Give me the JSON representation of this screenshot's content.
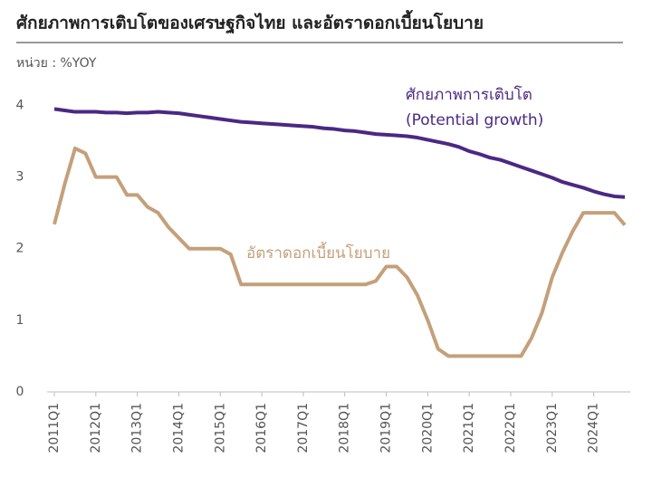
{
  "chart_data": {
    "type": "line",
    "title": "ศักยภาพการเติบโตของเศรษฐกิจไทย  และอัตราดอกเบี้ยนโยบาย",
    "subtitle": "หน่วย : %YOY",
    "categories": [
      "2011Q1",
      null,
      null,
      null,
      "2012Q1",
      null,
      null,
      null,
      "2013Q1",
      null,
      null,
      null,
      "2014Q1",
      null,
      null,
      null,
      "2015Q1",
      null,
      null,
      null,
      "2016Q1",
      null,
      null,
      null,
      "2017Q1",
      null,
      null,
      null,
      "2018Q1",
      null,
      null,
      null,
      "2019Q1",
      null,
      null,
      null,
      "2020Q1",
      null,
      null,
      null,
      "2021Q1",
      null,
      null,
      null,
      "2022Q1",
      null,
      null,
      null,
      "2023Q1",
      null,
      null,
      null,
      "2024Q1",
      null,
      null,
      null
    ],
    "series": [
      {
        "name": [
          "ศักยภาพการเติบโต",
          "(Potential growth)"
        ],
        "color": "#4b2884",
        "values": [
          3.95,
          3.93,
          3.91,
          3.91,
          3.91,
          3.9,
          3.9,
          3.89,
          3.9,
          3.9,
          3.91,
          3.9,
          3.89,
          3.87,
          3.85,
          3.83,
          3.81,
          3.79,
          3.77,
          3.76,
          3.75,
          3.74,
          3.73,
          3.72,
          3.71,
          3.7,
          3.68,
          3.67,
          3.65,
          3.64,
          3.62,
          3.6,
          3.59,
          3.58,
          3.57,
          3.55,
          3.52,
          3.49,
          3.46,
          3.42,
          3.36,
          3.32,
          3.27,
          3.24,
          3.19,
          3.14,
          3.09,
          3.04,
          2.99,
          2.93,
          2.89,
          2.85,
          2.8,
          2.76,
          2.73,
          2.72
        ]
      },
      {
        "name": [
          "อัตราดอกเบี้ยนโยบาย"
        ],
        "color": "#c4a07a",
        "values": [
          2.34,
          2.9,
          3.4,
          3.33,
          3.0,
          3.0,
          3.0,
          2.75,
          2.75,
          2.58,
          2.5,
          2.3,
          2.15,
          2.0,
          2.0,
          2.0,
          2.0,
          1.92,
          1.5,
          1.5,
          1.5,
          1.5,
          1.5,
          1.5,
          1.5,
          1.5,
          1.5,
          1.5,
          1.5,
          1.5,
          1.5,
          1.55,
          1.75,
          1.75,
          1.6,
          1.35,
          1.0,
          0.6,
          0.5,
          0.5,
          0.5,
          0.5,
          0.5,
          0.5,
          0.5,
          0.5,
          0.75,
          1.1,
          1.6,
          1.95,
          2.25,
          2.5,
          2.5,
          2.5,
          2.5,
          2.33
        ]
      }
    ],
    "ylim": [
      0,
      4.2
    ],
    "yticks": [
      0,
      1,
      2,
      3,
      4
    ],
    "grid": false
  }
}
